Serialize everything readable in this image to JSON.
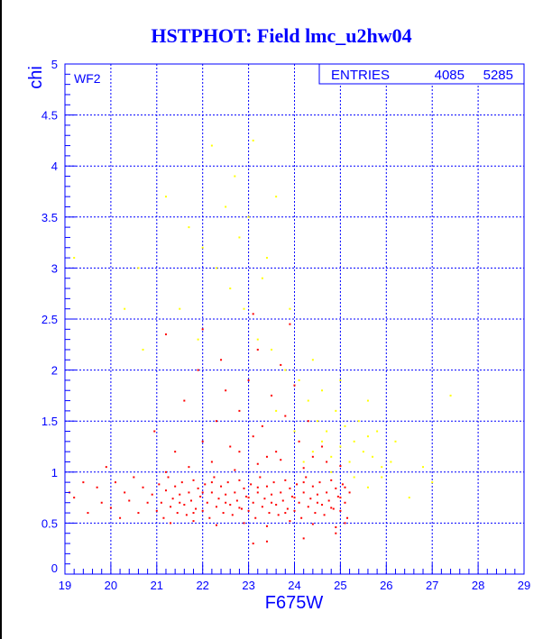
{
  "chart_data": {
    "type": "scatter",
    "title": "HSTPHOT: Field lmc_u2hw04",
    "xlabel": "F675W",
    "ylabel": "chi",
    "xlim": [
      19,
      29
    ],
    "ylim": [
      0,
      5
    ],
    "xticks": [
      "19",
      "20",
      "21",
      "22",
      "23",
      "24",
      "25",
      "26",
      "27",
      "28",
      "29"
    ],
    "yticks": [
      "0",
      "0.5",
      "1",
      "1.5",
      "2",
      "2.5",
      "3",
      "3.5",
      "4",
      "4.5",
      "5"
    ],
    "grid": true,
    "panel_label": "WF2",
    "stats": {
      "label": "ENTRIES",
      "values": [
        "5285",
        "4085"
      ]
    },
    "colors": {
      "axis": "#0000ff",
      "series_main": "#ff0000",
      "series_rejected": "#ffff00"
    },
    "series": [
      {
        "color": "#ff0000",
        "points": [
          [
            19.1,
            0.8
          ],
          [
            19.2,
            0.75
          ],
          [
            19.4,
            0.9
          ],
          [
            19.5,
            0.6
          ],
          [
            19.7,
            0.85
          ],
          [
            19.8,
            0.7
          ],
          [
            19.9,
            1.05
          ],
          [
            20.0,
            0.65
          ],
          [
            20.1,
            0.9
          ],
          [
            20.2,
            0.55
          ],
          [
            20.3,
            0.8
          ],
          [
            20.4,
            0.72
          ],
          [
            20.5,
            0.95
          ],
          [
            20.6,
            0.6
          ],
          [
            20.7,
            0.85
          ],
          [
            20.8,
            0.7
          ],
          [
            20.9,
            0.78
          ],
          [
            20.95,
            1.4
          ],
          [
            21.0,
            0.62
          ],
          [
            21.05,
            0.88
          ],
          [
            21.1,
            0.7
          ],
          [
            21.15,
            0.55
          ],
          [
            21.2,
            0.82
          ],
          [
            21.25,
            0.95
          ],
          [
            21.3,
            0.66
          ],
          [
            21.35,
            0.74
          ],
          [
            21.4,
            0.86
          ],
          [
            21.45,
            0.6
          ],
          [
            21.5,
            0.78
          ],
          [
            21.55,
            0.9
          ],
          [
            21.6,
            0.68
          ],
          [
            21.65,
            0.58
          ],
          [
            21.7,
            0.8
          ],
          [
            21.75,
            0.72
          ],
          [
            21.8,
            0.92
          ],
          [
            21.85,
            0.64
          ],
          [
            21.9,
            0.84
          ],
          [
            21.95,
            0.76
          ],
          [
            22.0,
            0.62
          ],
          [
            22.05,
            0.88
          ],
          [
            22.1,
            0.7
          ],
          [
            22.15,
            0.55
          ],
          [
            22.2,
            0.8
          ],
          [
            22.25,
            0.95
          ],
          [
            22.3,
            0.66
          ],
          [
            22.35,
            0.74
          ],
          [
            22.4,
            0.86
          ],
          [
            22.45,
            0.6
          ],
          [
            22.5,
            0.78
          ],
          [
            22.55,
            0.9
          ],
          [
            22.6,
            0.68
          ],
          [
            22.65,
            0.58
          ],
          [
            22.7,
            0.8
          ],
          [
            22.75,
            0.72
          ],
          [
            22.8,
            0.92
          ],
          [
            22.85,
            0.64
          ],
          [
            22.9,
            0.84
          ],
          [
            22.95,
            0.76
          ],
          [
            23.0,
            0.62
          ],
          [
            23.05,
            0.88
          ],
          [
            23.1,
            0.7
          ],
          [
            23.15,
            0.55
          ],
          [
            23.2,
            0.8
          ],
          [
            23.25,
            0.95
          ],
          [
            23.3,
            0.66
          ],
          [
            23.35,
            0.74
          ],
          [
            23.4,
            0.86
          ],
          [
            23.45,
            0.6
          ],
          [
            23.5,
            0.78
          ],
          [
            23.55,
            0.9
          ],
          [
            23.6,
            0.68
          ],
          [
            23.65,
            0.58
          ],
          [
            23.7,
            0.8
          ],
          [
            23.75,
            0.72
          ],
          [
            23.8,
            0.92
          ],
          [
            23.85,
            0.64
          ],
          [
            23.9,
            0.84
          ],
          [
            23.95,
            0.76
          ],
          [
            24.0,
            0.62
          ],
          [
            24.05,
            0.88
          ],
          [
            24.1,
            0.7
          ],
          [
            24.15,
            0.55
          ],
          [
            24.2,
            0.8
          ],
          [
            24.25,
            0.95
          ],
          [
            24.3,
            0.66
          ],
          [
            24.35,
            0.74
          ],
          [
            24.4,
            0.86
          ],
          [
            24.45,
            0.6
          ],
          [
            24.5,
            0.78
          ],
          [
            24.55,
            0.9
          ],
          [
            24.6,
            0.68
          ],
          [
            24.65,
            0.58
          ],
          [
            24.7,
            0.8
          ],
          [
            24.75,
            0.72
          ],
          [
            24.8,
            0.92
          ],
          [
            24.85,
            0.64
          ],
          [
            24.9,
            0.84
          ],
          [
            24.95,
            0.76
          ],
          [
            25.0,
            0.62
          ],
          [
            25.05,
            0.88
          ],
          [
            25.1,
            0.7
          ],
          [
            25.15,
            0.55
          ],
          [
            25.2,
            0.8
          ],
          [
            21.3,
            0.5
          ],
          [
            21.8,
            0.52
          ],
          [
            22.3,
            0.48
          ],
          [
            22.9,
            0.5
          ],
          [
            23.4,
            0.47
          ],
          [
            23.9,
            0.52
          ],
          [
            24.4,
            0.49
          ],
          [
            24.9,
            0.46
          ],
          [
            25.1,
            0.5
          ],
          [
            21.2,
            1.0
          ],
          [
            21.7,
            1.05
          ],
          [
            22.2,
            1.1
          ],
          [
            22.7,
            1.02
          ],
          [
            23.2,
            1.08
          ],
          [
            23.7,
            1.12
          ],
          [
            24.2,
            1.04
          ],
          [
            24.7,
            1.1
          ],
          [
            25.0,
            1.06
          ],
          [
            21.4,
            1.2
          ],
          [
            22.0,
            1.3
          ],
          [
            22.6,
            1.25
          ],
          [
            23.1,
            1.35
          ],
          [
            23.6,
            1.2
          ],
          [
            24.1,
            1.3
          ],
          [
            24.6,
            1.25
          ],
          [
            22.3,
            1.5
          ],
          [
            22.8,
            1.6
          ],
          [
            23.3,
            1.45
          ],
          [
            23.8,
            1.55
          ],
          [
            24.3,
            1.5
          ],
          [
            21.6,
            1.7
          ],
          [
            22.5,
            1.8
          ],
          [
            23.0,
            1.9
          ],
          [
            23.5,
            1.75
          ],
          [
            24.0,
            1.85
          ],
          [
            21.9,
            2.0
          ],
          [
            22.4,
            2.1
          ],
          [
            23.2,
            2.2
          ],
          [
            23.7,
            2.05
          ],
          [
            22.0,
            2.4
          ],
          [
            23.1,
            2.55
          ],
          [
            23.9,
            2.45
          ],
          [
            21.2,
            2.35
          ],
          [
            22.8,
            1.2
          ],
          [
            23.4,
            1.15
          ],
          [
            24.4,
            1.15
          ],
          [
            21.5,
            0.7
          ],
          [
            22.0,
            0.8
          ],
          [
            22.5,
            0.7
          ],
          [
            23.0,
            0.75
          ],
          [
            23.5,
            0.7
          ],
          [
            24.0,
            0.75
          ],
          [
            24.5,
            0.7
          ],
          [
            25.0,
            0.75
          ],
          [
            21.8,
            0.6
          ],
          [
            22.8,
            0.65
          ],
          [
            23.8,
            0.6
          ],
          [
            24.8,
            0.65
          ],
          [
            22.2,
            0.9
          ],
          [
            23.2,
            0.85
          ],
          [
            24.2,
            0.9
          ],
          [
            25.1,
            0.85
          ],
          [
            23.1,
            0.3
          ],
          [
            23.4,
            0.32
          ],
          [
            24.2,
            0.35
          ],
          [
            24.9,
            0.4
          ]
        ]
      },
      {
        "color": "#ffff00",
        "points": [
          [
            24.2,
            1.1
          ],
          [
            24.4,
            1.2
          ],
          [
            24.6,
            1.3
          ],
          [
            24.8,
            1.15
          ],
          [
            25.0,
            1.25
          ],
          [
            25.2,
            1.1
          ],
          [
            24.5,
            1.5
          ],
          [
            24.7,
            1.4
          ],
          [
            24.9,
            1.6
          ],
          [
            25.1,
            1.45
          ],
          [
            25.3,
            1.3
          ],
          [
            25.5,
            1.2
          ],
          [
            25.7,
            1.15
          ],
          [
            25.9,
            1.05
          ],
          [
            26.1,
            1.1
          ],
          [
            25.4,
            1.5
          ],
          [
            25.6,
            1.35
          ],
          [
            25.8,
            1.4
          ],
          [
            24.3,
            1.7
          ],
          [
            24.6,
            1.8
          ],
          [
            24.1,
            1.9
          ],
          [
            23.8,
            2.0
          ],
          [
            23.5,
            2.2
          ],
          [
            23.2,
            2.3
          ],
          [
            22.9,
            2.6
          ],
          [
            22.6,
            2.8
          ],
          [
            22.3,
            3.0
          ],
          [
            22.0,
            3.2
          ],
          [
            21.7,
            3.4
          ],
          [
            23.0,
            3.5
          ],
          [
            22.7,
            3.9
          ],
          [
            23.1,
            4.25
          ],
          [
            22.2,
            4.2
          ],
          [
            21.2,
            3.7
          ],
          [
            20.6,
            3.0
          ],
          [
            20.3,
            2.6
          ],
          [
            19.2,
            3.1
          ],
          [
            20.7,
            2.2
          ],
          [
            21.5,
            2.6
          ],
          [
            22.8,
            3.3
          ],
          [
            23.4,
            3.1
          ],
          [
            23.9,
            2.6
          ],
          [
            24.4,
            2.1
          ],
          [
            25.0,
            1.9
          ],
          [
            25.6,
            1.7
          ],
          [
            26.2,
            1.3
          ],
          [
            26.5,
            0.75
          ],
          [
            27.4,
            1.75
          ],
          [
            27.0,
            0.9
          ],
          [
            26.8,
            1.05
          ],
          [
            24.0,
            1.4
          ],
          [
            23.6,
            1.6
          ],
          [
            24.8,
            1.0
          ],
          [
            25.3,
            0.95
          ],
          [
            25.6,
            0.85
          ],
          [
            25.9,
            0.95
          ],
          [
            23.3,
            2.9
          ],
          [
            22.5,
            3.6
          ],
          [
            23.6,
            3.7
          ],
          [
            21.9,
            2.3
          ]
        ]
      }
    ]
  }
}
